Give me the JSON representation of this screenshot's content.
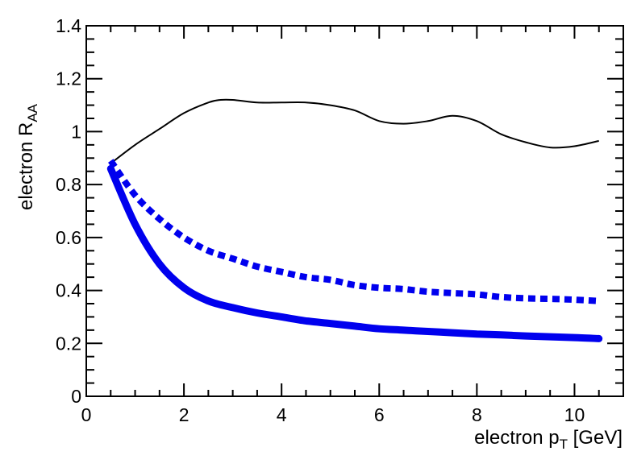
{
  "chart_data": {
    "type": "line",
    "xlabel": "electron p",
    "xlabel_sub": "T",
    "xlabel_suffix": " [GeV]",
    "ylabel": "electron R",
    "ylabel_sub": "AA",
    "xlim": [
      0,
      11
    ],
    "ylim": [
      0,
      1.4
    ],
    "x_ticks": [
      0,
      2,
      4,
      6,
      8,
      10
    ],
    "y_ticks": [
      0,
      0.2,
      0.4,
      0.6,
      0.8,
      1,
      1.2,
      1.4
    ],
    "x_tick_labels": [
      "0",
      "2",
      "4",
      "6",
      "8",
      "10"
    ],
    "y_tick_labels": [
      "0",
      "0.2",
      "0.4",
      "0.6",
      "0.8",
      "1",
      "1.2",
      "1.4"
    ],
    "grid": false,
    "series": [
      {
        "style": "solid-thin",
        "color": "#000000",
        "x": [
          0.5,
          1.0,
          1.5,
          2.0,
          2.5,
          2.75,
          3.0,
          3.5,
          4.0,
          4.5,
          5.0,
          5.5,
          6.0,
          6.5,
          7.0,
          7.5,
          8.0,
          8.5,
          9.0,
          9.5,
          10.0,
          10.5
        ],
        "y": [
          0.88,
          0.95,
          1.01,
          1.07,
          1.11,
          1.12,
          1.12,
          1.11,
          1.11,
          1.11,
          1.1,
          1.08,
          1.04,
          1.03,
          1.04,
          1.06,
          1.04,
          0.99,
          0.96,
          0.94,
          0.945,
          0.965
        ]
      },
      {
        "style": "dotted-thick",
        "color": "#0000ee",
        "x": [
          0.5,
          1.0,
          1.5,
          2.0,
          2.5,
          3.0,
          3.5,
          4.0,
          4.5,
          5.0,
          5.5,
          6.0,
          6.5,
          7.0,
          7.5,
          8.0,
          8.5,
          9.0,
          9.5,
          10.0,
          10.5
        ],
        "y": [
          0.89,
          0.76,
          0.67,
          0.6,
          0.55,
          0.52,
          0.49,
          0.47,
          0.45,
          0.44,
          0.42,
          0.41,
          0.405,
          0.395,
          0.39,
          0.385,
          0.375,
          0.37,
          0.368,
          0.365,
          0.36
        ]
      },
      {
        "style": "solid-thick",
        "color": "#0000ee",
        "x": [
          0.5,
          1.0,
          1.5,
          2.0,
          2.5,
          3.0,
          3.5,
          4.0,
          4.5,
          5.0,
          5.5,
          6.0,
          6.5,
          7.0,
          7.5,
          8.0,
          8.5,
          9.0,
          9.5,
          10.0,
          10.5
        ],
        "y": [
          0.86,
          0.65,
          0.5,
          0.41,
          0.36,
          0.335,
          0.315,
          0.3,
          0.285,
          0.275,
          0.265,
          0.255,
          0.25,
          0.245,
          0.24,
          0.235,
          0.232,
          0.228,
          0.225,
          0.222,
          0.218
        ]
      }
    ]
  }
}
